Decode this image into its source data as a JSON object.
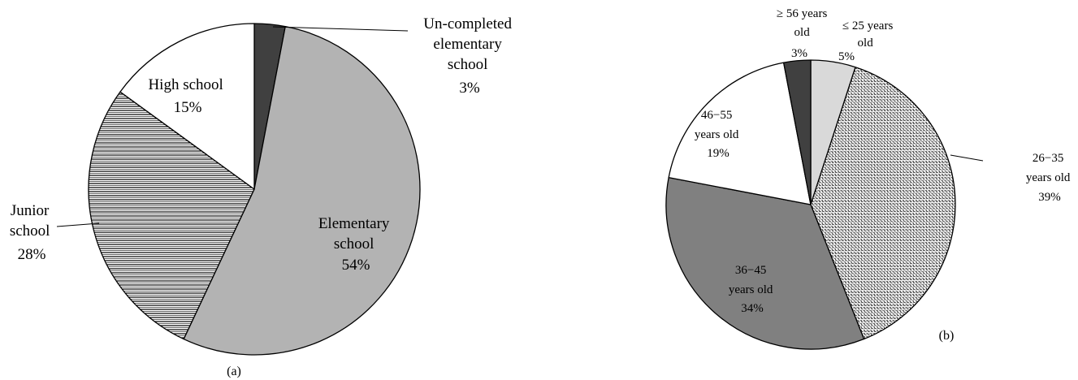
{
  "chart_data": [
    {
      "type": "pie",
      "panel_label": "(a)",
      "slices": [
        {
          "label_lines": [
            "Un-completed",
            "elementary",
            "school"
          ],
          "value": 3,
          "value_label": "3%",
          "color": "#404040",
          "pattern": "solid"
        },
        {
          "label_lines": [
            "Elementary",
            "school"
          ],
          "value": 54,
          "value_label": "54%",
          "color": "#b3b3b3",
          "pattern": "solid"
        },
        {
          "label_lines": [
            "Junior",
            "school"
          ],
          "value": 28,
          "value_label": "28%",
          "color": "#ffffff",
          "pattern": "horizontal-lines"
        },
        {
          "label_lines": [
            "High school"
          ],
          "value": 15,
          "value_label": "15%",
          "color": "#ffffff",
          "pattern": "solid"
        }
      ]
    },
    {
      "type": "pie",
      "panel_label": "(b)",
      "slices": [
        {
          "label_lines": [
            "≤ 25 years",
            "old"
          ],
          "value": 5,
          "value_label": "5%",
          "color": "#d9d9d9",
          "pattern": "solid"
        },
        {
          "label_lines": [
            "26−35",
            "years old"
          ],
          "value": 39,
          "value_label": "39%",
          "color": "#ffffff",
          "pattern": "dotted-grid"
        },
        {
          "label_lines": [
            "36−45",
            "years old"
          ],
          "value": 34,
          "value_label": "34%",
          "color": "#808080",
          "pattern": "solid"
        },
        {
          "label_lines": [
            "46−55",
            "years old"
          ],
          "value": 19,
          "value_label": "19%",
          "color": "#ffffff",
          "pattern": "solid"
        },
        {
          "label_lines": [
            "≥ 56 years",
            "old"
          ],
          "value": 3,
          "value_label": "3%",
          "color": "#404040",
          "pattern": "solid"
        }
      ]
    }
  ]
}
